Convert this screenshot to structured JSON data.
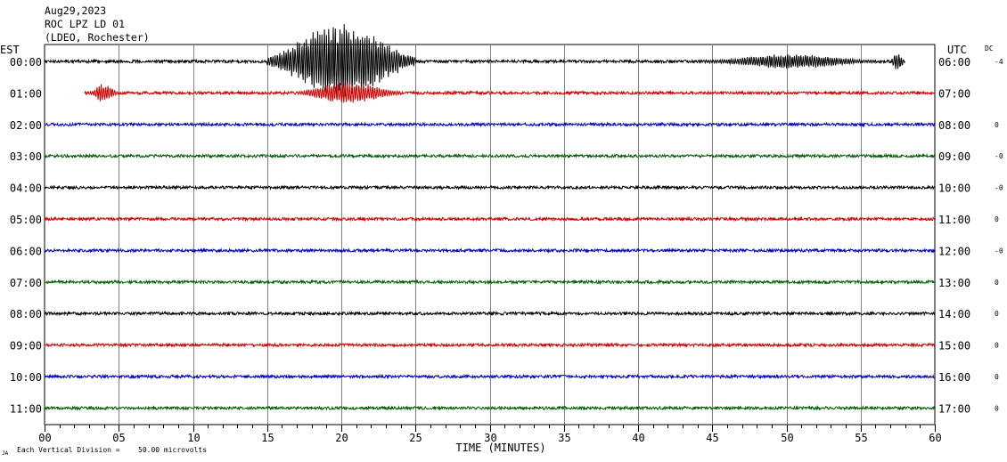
{
  "header": {
    "date": "Aug29,2023",
    "station": "ROC LPZ LD 01",
    "network": "(LDEO, Rochester)"
  },
  "left_zone_label": "EST",
  "right_zone_label": "UTC",
  "dc_label": "DC",
  "footer": {
    "x_axis_label": "TIME (MINUTES)",
    "scale_note": "Each Vertical Division =",
    "scale_value": "50.00 microvolts",
    "corner_mark": "JA"
  },
  "colors": {
    "trace_cycle": [
      "#000000",
      "#d00000",
      "#0000c0",
      "#006000"
    ],
    "grid": "#808080",
    "axis": "#000000"
  },
  "chart_data": {
    "type": "line",
    "title": "",
    "xlabel": "TIME (MINUTES)",
    "xlim": [
      0,
      60
    ],
    "x_ticks": [
      "00",
      "05",
      "10",
      "15",
      "20",
      "25",
      "30",
      "35",
      "40",
      "45",
      "50",
      "55",
      "60"
    ],
    "grid": true,
    "rows": [
      {
        "est": "00:00",
        "utc": "06:00",
        "dc": "-4",
        "color": "#000000"
      },
      {
        "est": "01:00",
        "utc": "07:00",
        "dc": "",
        "color": "#d00000"
      },
      {
        "est": "02:00",
        "utc": "08:00",
        "dc": "0",
        "color": "#0000c0"
      },
      {
        "est": "03:00",
        "utc": "09:00",
        "dc": "-0",
        "color": "#006000"
      },
      {
        "est": "04:00",
        "utc": "10:00",
        "dc": "-0",
        "color": "#000000"
      },
      {
        "est": "05:00",
        "utc": "11:00",
        "dc": "0",
        "color": "#d00000"
      },
      {
        "est": "06:00",
        "utc": "12:00",
        "dc": "-0",
        "color": "#0000c0"
      },
      {
        "est": "07:00",
        "utc": "13:00",
        "dc": "0",
        "color": "#006000"
      },
      {
        "est": "08:00",
        "utc": "14:00",
        "dc": "0",
        "color": "#000000"
      },
      {
        "est": "09:00",
        "utc": "15:00",
        "dc": "0",
        "color": "#d00000"
      },
      {
        "est": "10:00",
        "utc": "16:00",
        "dc": "0",
        "color": "#0000c0"
      },
      {
        "est": "11:00",
        "utc": "17:00",
        "dc": "0",
        "color": "#006000"
      }
    ],
    "trace_windows_minutes": {
      "00:00": [
        0,
        58
      ],
      "01:00": [
        2.7,
        60
      ]
    },
    "event_segments_minutes": [
      {
        "row": "00:00",
        "start": 15,
        "end": 25,
        "amplitude_divisions": 2.0
      },
      {
        "row": "01:00",
        "start": 3,
        "end": 5,
        "amplitude_divisions": 0.5
      },
      {
        "row": "01:00",
        "start": 17,
        "end": 24,
        "amplitude_divisions": 0.6
      },
      {
        "row": "00:00",
        "start": 44.5,
        "end": 56,
        "amplitude_divisions": 0.4
      },
      {
        "row": "00:00",
        "start": 57,
        "end": 58,
        "amplitude_divisions": 0.5
      }
    ]
  }
}
